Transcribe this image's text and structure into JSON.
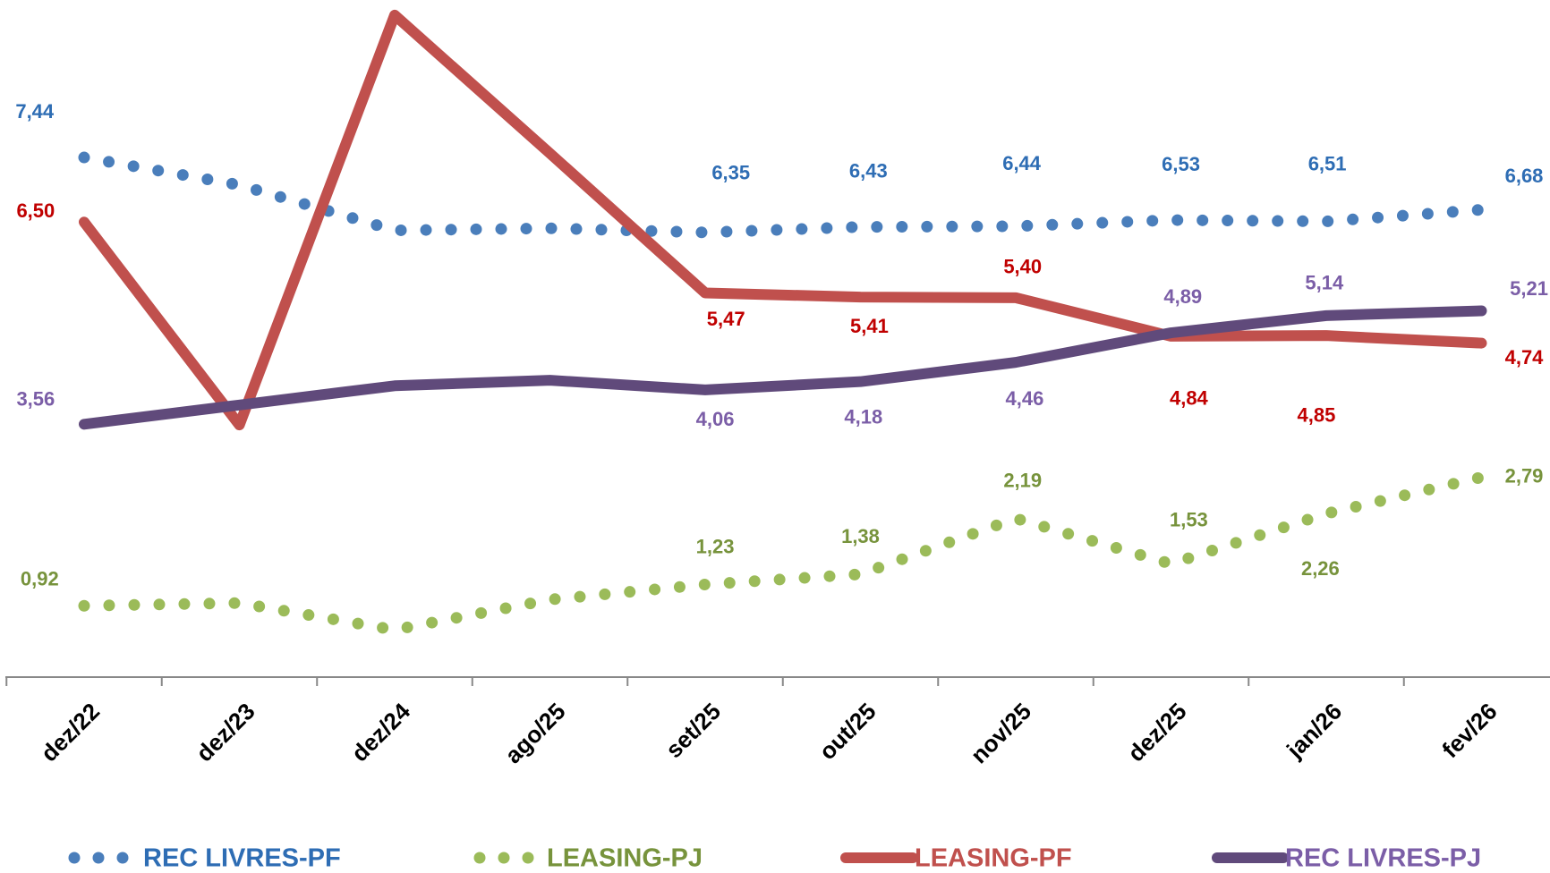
{
  "chart_data": {
    "type": "line",
    "categories": [
      "dez/22",
      "dez/23",
      "dez/24",
      "ago/25",
      "set/25",
      "out/25",
      "nov/25",
      "dez/25",
      "jan/26",
      "fev/26"
    ],
    "ylim": [
      0,
      9.73
    ],
    "series": [
      {
        "name": "REC LIVRES-PF",
        "color": "#4a7ebb",
        "label_color": "#2e6db4",
        "style": "dotted",
        "values": [
          7.44,
          7.04,
          6.38,
          6.41,
          6.35,
          6.43,
          6.44,
          6.53,
          6.51,
          6.68
        ],
        "value_labels": [
          "7,44",
          null,
          null,
          null,
          "6,35",
          "6,43",
          "6,44",
          "6,53",
          "6,51",
          "6,68"
        ]
      },
      {
        "name": "LEASING-PJ",
        "color": "#9bbb59",
        "label_color": "#77933c",
        "style": "dotted",
        "values": [
          0.92,
          0.96,
          0.57,
          1.01,
          1.23,
          1.38,
          2.19,
          1.53,
          2.26,
          2.79
        ],
        "value_labels": [
          "0,92",
          null,
          null,
          null,
          "1,23",
          "1,38",
          "2,19",
          "1,53",
          "2,26",
          "2,79"
        ]
      },
      {
        "name": "LEASING-PF",
        "color": "#c0504d",
        "label_color": "#c00000",
        "style": "solid",
        "values": [
          6.5,
          3.55,
          9.51,
          7.5,
          5.47,
          5.41,
          5.4,
          4.84,
          4.85,
          4.74
        ],
        "value_labels": [
          "6,50",
          null,
          null,
          null,
          "5,47",
          "5,41",
          "5,40",
          "4,84",
          "4,85",
          "4,74"
        ]
      },
      {
        "name": "REC LIVRES-PJ",
        "color": "#604a7b",
        "label_color": "#7b5ea7",
        "style": "solid",
        "values": [
          3.56,
          3.84,
          4.12,
          4.2,
          4.06,
          4.18,
          4.46,
          4.89,
          5.14,
          5.21
        ],
        "value_labels": [
          "3,56",
          null,
          null,
          null,
          "4,06",
          "4,18",
          "4,46",
          "4,89",
          "5,14",
          "5,21"
        ]
      }
    ]
  }
}
